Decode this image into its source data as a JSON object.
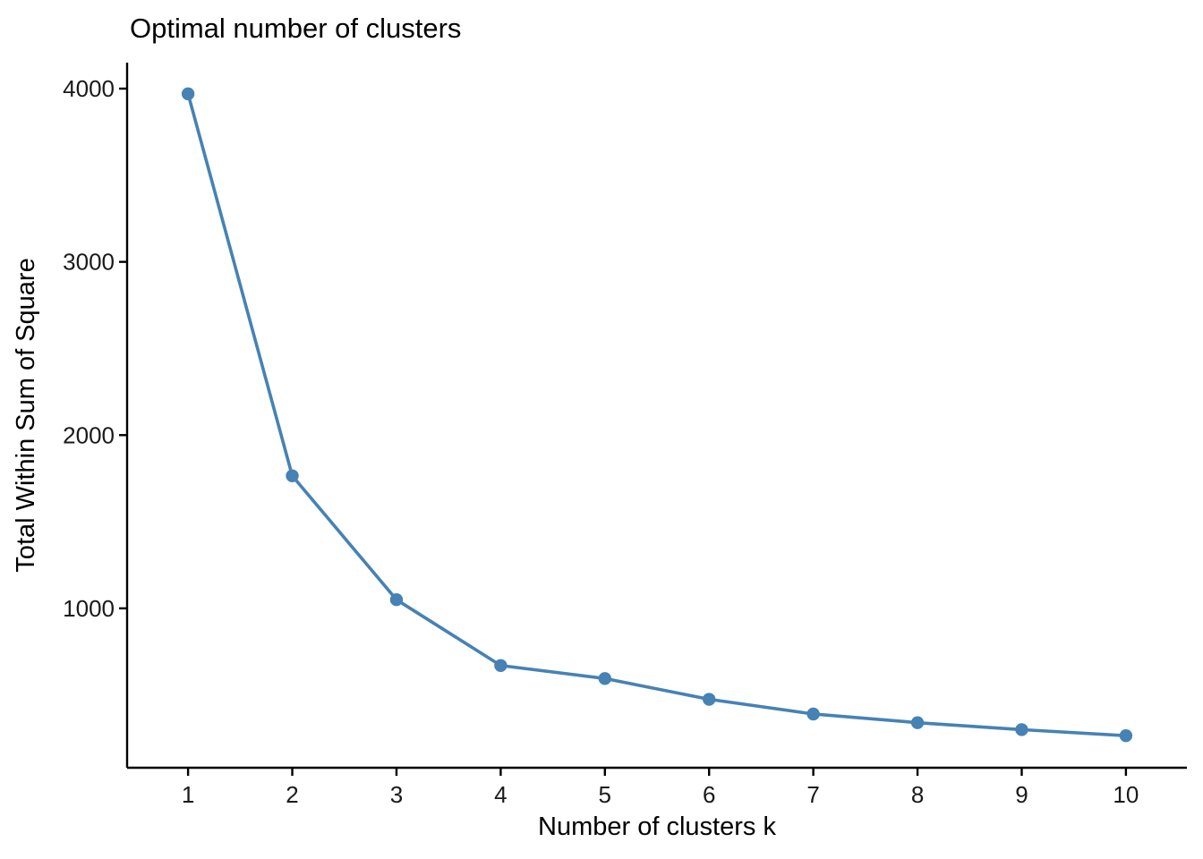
{
  "title": "Optimal number of clusters",
  "chart_data": {
    "type": "line",
    "title": "Optimal number of clusters",
    "xlabel": "Number of clusters k",
    "ylabel": "Total Within Sum of Square",
    "x": [
      1,
      2,
      3,
      4,
      5,
      6,
      7,
      8,
      9,
      10
    ],
    "series": [
      {
        "name": "total_within_ss",
        "values": [
          3970,
          1765,
          1050,
          670,
          595,
          475,
          390,
          340,
          300,
          265
        ]
      }
    ],
    "x_ticks": [
      "1",
      "2",
      "3",
      "4",
      "5",
      "6",
      "7",
      "8",
      "9",
      "10"
    ],
    "y_ticks": [
      1000,
      2000,
      3000,
      4000
    ],
    "y_tick_labels": [
      "1000",
      "2000",
      "3000",
      "4000"
    ],
    "xlim": [
      0.415,
      10.585
    ],
    "ylim": [
      80,
      4150
    ],
    "grid": false,
    "legend_position": "none",
    "line_color": "#4682B4",
    "point_color": "#4682B4",
    "axis_color": "#000000",
    "background_color": "#FFFFFF"
  }
}
